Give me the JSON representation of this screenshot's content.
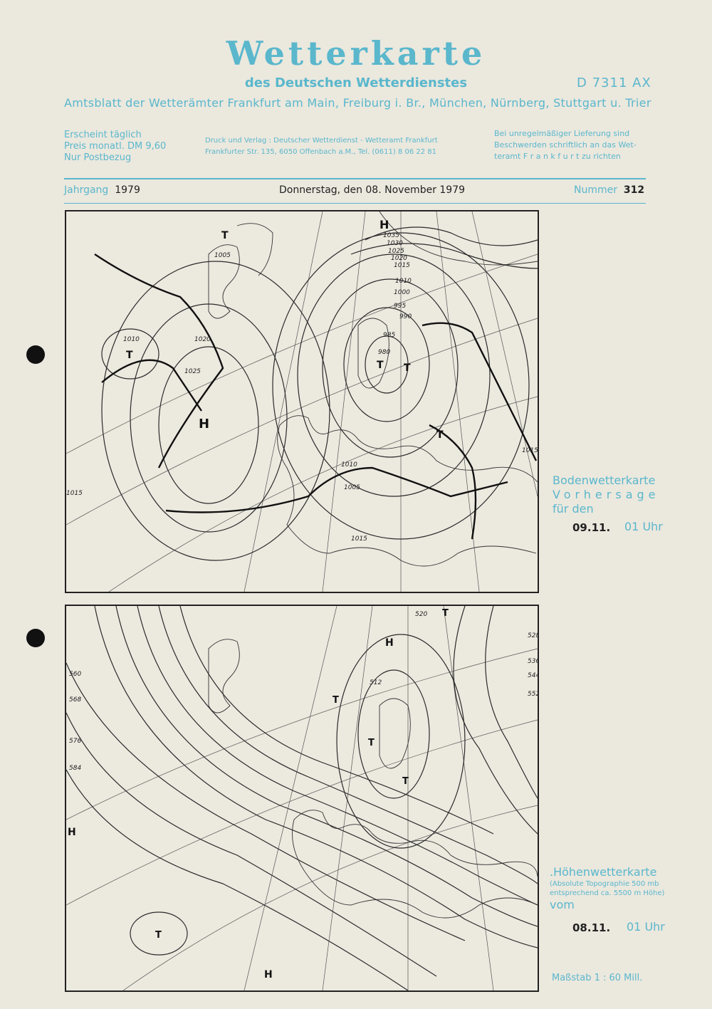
{
  "header": {
    "title": "Wetterkarte",
    "subtitle": "des Deutschen Wetterdienstes",
    "code": "D 7311 AX",
    "amtsblatt": "Amtsblatt der Wetterämter Frankfurt am Main, Freiburg i. Br., München, Nürnberg, Stuttgart u. Trier",
    "left": [
      "Erscheint täglich",
      "Preis monatl. DM 9,60",
      "Nur Postbezug"
    ],
    "center": [
      "Druck und Verlag : Deutscher Wetterdienst  - Wetteramt Frankfurt",
      "Frankfurter Str. 135, 6050 Offenbach a.M., Tel. (0611) 8 06 22 81"
    ],
    "right": [
      "Bei unregelmäßiger Lieferung sind",
      "Beschwerden schriftlich an das Wet-",
      "teramt  F r a n k f u r t  zu richten"
    ],
    "jahrgang_label": "Jahrgang",
    "jahrgang": "1979",
    "date": "Donnerstag, den 08. November 1979",
    "nummer_label": "Nummer",
    "nummer": "312"
  },
  "map1": {
    "caption": [
      "Bodenwetterkarte",
      "Vorhersage",
      "für den"
    ],
    "date": "09.11.",
    "time": "01 Uhr",
    "labels": {
      "h1": "H",
      "h2": "H",
      "t1": "T",
      "t2": "T",
      "t3": "T",
      "t4": "T",
      "t5": "T",
      "p1035": "1035",
      "p1030": "1030",
      "p1025": "1025",
      "p1020": "1020",
      "p1015": "1015",
      "p1010": "1010",
      "p1005": "1005",
      "p1000": "1000",
      "p995": "995",
      "p990": "990",
      "p985": "985",
      "p980": "980",
      "w1015": "1015",
      "w1010": "1010",
      "w1025": "1025",
      "w1020": "1020",
      "s1015": "1015",
      "s1010": "1010",
      "s1005": "1005",
      "e1015": "1015"
    }
  },
  "map2": {
    "caption": [
      ".Höhenwetterkarte",
      "(Absolute Topographie 500 mb",
      "entsprechend ca. 5500 m Höhe)",
      "vom"
    ],
    "date": "08.11.",
    "time": "01 Uhr",
    "scale": "Maßstab 1 : 60 Mill.",
    "labels": {
      "h1": "H",
      "h2": "H",
      "h3": "H",
      "t1": "T",
      "t2": "T",
      "t3": "T",
      "t4": "T",
      "t5": "T",
      "g512": "512",
      "g520": "520",
      "g528": "528",
      "g536": "536",
      "g544": "544",
      "g552": "552",
      "g560": "560",
      "g568": "568",
      "g576": "576",
      "g584": "584"
    }
  },
  "colors": {
    "accent": "#5ab7cc",
    "paper": "#ebe8de",
    "ink": "#222222"
  }
}
